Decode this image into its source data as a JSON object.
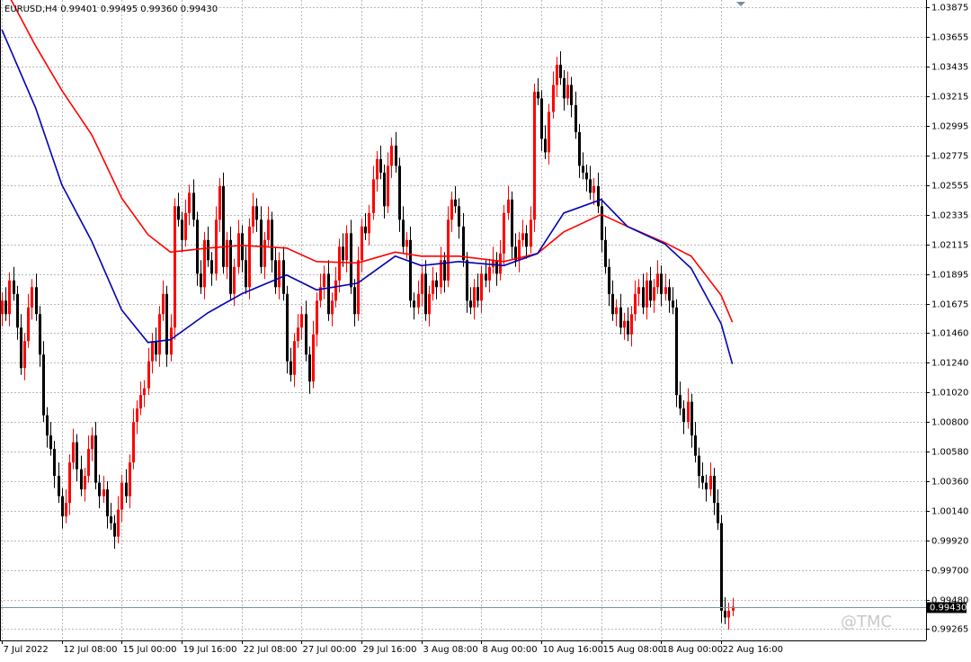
{
  "chart_data": {
    "type": "candlestick",
    "header": "EURUSD,H4  0.99401 0.99495 0.99360 0.99430",
    "watermark": "@TMC",
    "up_color": "#ff0000",
    "down_color": "#000000",
    "ylim": [
      0.9918,
      1.0393
    ],
    "yticks": [
      1.03875,
      1.03655,
      1.03435,
      1.03215,
      1.02995,
      1.02775,
      1.02555,
      1.02335,
      1.02115,
      1.01895,
      1.01675,
      {
        "value": 1.0146,
        "label": "1.01460"
      },
      {
        "value": 1.0124,
        "label": "1.01240"
      },
      {
        "value": 1.0102,
        "label": "1.01020"
      },
      {
        "value": 1.008,
        "label": "1.00800"
      },
      {
        "value": 1.0058,
        "label": "1.00580"
      },
      {
        "value": 1.0036,
        "label": "1.00360"
      },
      {
        "value": 1.0014,
        "label": "1.00140"
      },
      {
        "value": 0.9992,
        "label": "0.99920"
      },
      {
        "value": 0.997,
        "label": "0.99700"
      },
      {
        "value": 0.9948,
        "label": "0.99480"
      },
      0.99265
    ],
    "xlim": [
      -0.5,
      246.7
    ],
    "xticks": [
      {
        "value": 0,
        "label": "7 Jul 2022"
      },
      {
        "value": 16,
        "label": "12 Jul 08:00"
      },
      {
        "value": 32,
        "label": "15 Jul 00:00"
      },
      {
        "value": 48,
        "label": "19 Jul 16:00"
      },
      {
        "value": 64,
        "label": "22 Jul 08:00"
      },
      {
        "value": 80,
        "label": "27 Jul 00:00"
      },
      {
        "value": 96,
        "label": "29 Jul 16:00"
      },
      {
        "value": 112,
        "label": "3 Aug 08:00"
      },
      {
        "value": 128,
        "label": "8 Aug 00:00"
      },
      {
        "value": 144,
        "label": "10 Aug 16:00"
      },
      {
        "value": 160,
        "label": "15 Aug 08:00"
      },
      {
        "value": 176,
        "label": "18 Aug 00:00"
      },
      {
        "value": 192,
        "label": "22 Aug 16:00"
      }
    ],
    "grid": true,
    "last_price": {
      "value": 0.9943,
      "label": "0.99430"
    },
    "ohlc": [
      [
        1.016,
        1.0176,
        1.0151,
        1.017
      ],
      [
        1.017,
        1.018,
        1.0155,
        1.016
      ],
      [
        1.016,
        1.0191,
        1.0151,
        1.0185
      ],
      [
        1.0185,
        1.0195,
        1.017,
        1.0175
      ],
      [
        1.0175,
        1.0181,
        1.0141,
        1.015
      ],
      [
        1.015,
        1.016,
        1.0115,
        1.012
      ],
      [
        1.012,
        1.0146,
        1.0111,
        1.014
      ],
      [
        1.014,
        1.0175,
        1.0135,
        1.0165
      ],
      [
        1.0165,
        1.0186,
        1.0156,
        1.018
      ],
      [
        1.018,
        1.019,
        1.0155,
        1.016
      ],
      [
        1.016,
        1.0166,
        1.0121,
        1.013
      ],
      [
        1.013,
        1.014,
        1.008,
        1.0085
      ],
      [
        1.0085,
        1.0091,
        1.0061,
        1.007
      ],
      [
        1.007,
        1.008,
        1.0055,
        1.006
      ],
      [
        1.006,
        1.0066,
        1.0031,
        1.004
      ],
      [
        1.004,
        1.005,
        1.002,
        1.0025
      ],
      [
        1.0025,
        1.0031,
        1.0001,
        1.001
      ],
      [
        1.001,
        1.003,
        1.0005,
        1.002
      ],
      [
        1.002,
        1.0056,
        1.0011,
        1.005
      ],
      [
        1.005,
        1.0075,
        1.0045,
        1.0065
      ],
      [
        1.0065,
        1.0071,
        1.0036,
        1.0045
      ],
      [
        1.0045,
        1.0055,
        1.0025,
        1.003
      ],
      [
        1.003,
        1.0046,
        1.0021,
        1.004
      ],
      [
        1.004,
        1.007,
        1.0035,
        1.006
      ],
      [
        1.006,
        1.0076,
        1.0051,
        1.007
      ],
      [
        1.007,
        1.008,
        1.003,
        1.0035
      ],
      [
        1.0035,
        1.0041,
        1.0016,
        1.0025
      ],
      [
        1.0025,
        1.004,
        1.002,
        1.003
      ],
      [
        1.003,
        1.0036,
        1.0001,
        1.001
      ],
      [
        1.001,
        1.002,
        1.0,
        1.0005
      ],
      [
        1.0005,
        1.0011,
        0.9986,
        0.9995
      ],
      [
        0.9995,
        1.0025,
        0.999,
        1.0015
      ],
      [
        1.0015,
        1.0041,
        1.0006,
        1.0035
      ],
      [
        1.0035,
        1.0045,
        1.002,
        1.0025
      ],
      [
        1.0025,
        1.0056,
        1.0016,
        1.005
      ],
      [
        1.005,
        1.009,
        1.0045,
        1.008
      ],
      [
        1.008,
        1.0096,
        1.0071,
        1.009
      ],
      [
        1.009,
        1.011,
        1.0085,
        1.01
      ],
      [
        1.01,
        1.0111,
        1.0091,
        1.0105
      ],
      [
        1.0105,
        1.0135,
        1.01,
        1.0125
      ],
      [
        1.0125,
        1.0146,
        1.0116,
        1.014
      ],
      [
        1.014,
        1.015,
        1.0125,
        1.013
      ],
      [
        1.013,
        1.0166,
        1.0121,
        1.016
      ],
      [
        1.016,
        1.0185,
        1.0155,
        1.0175
      ],
      [
        1.0175,
        1.0181,
        1.0121,
        1.013
      ],
      [
        1.013,
        1.016,
        1.0125,
        1.015
      ],
      [
        1.015,
        1.0246,
        1.0141,
        1.024
      ],
      [
        1.024,
        1.025,
        1.0225,
        1.023
      ],
      [
        1.023,
        1.0236,
        1.0206,
        1.0215
      ],
      [
        1.0215,
        1.0245,
        1.021,
        1.0235
      ],
      [
        1.0235,
        1.0256,
        1.0226,
        1.025
      ],
      [
        1.025,
        1.026,
        1.0225,
        1.023
      ],
      [
        1.023,
        1.0236,
        1.0181,
        1.019
      ],
      [
        1.019,
        1.02,
        1.0175,
        1.018
      ],
      [
        1.018,
        1.0221,
        1.0171,
        1.0215
      ],
      [
        1.0215,
        1.0225,
        1.0195,
        1.02
      ],
      [
        1.02,
        1.0206,
        1.0181,
        1.019
      ],
      [
        1.019,
        1.024,
        1.0185,
        1.023
      ],
      [
        1.023,
        1.0261,
        1.0221,
        1.0255
      ],
      [
        1.0255,
        1.0265,
        1.019,
        1.0195
      ],
      [
        1.0195,
        1.0221,
        1.0186,
        1.0215
      ],
      [
        1.0215,
        1.0225,
        1.017,
        1.0175
      ],
      [
        1.0175,
        1.0201,
        1.0166,
        1.0195
      ],
      [
        1.0195,
        1.023,
        1.019,
        1.022
      ],
      [
        1.022,
        1.0226,
        1.0191,
        1.02
      ],
      [
        1.02,
        1.021,
        1.0175,
        1.018
      ],
      [
        1.018,
        1.0231,
        1.0171,
        1.0225
      ],
      [
        1.0225,
        1.025,
        1.022,
        1.024
      ],
      [
        1.024,
        1.0246,
        1.0221,
        1.023
      ],
      [
        1.023,
        1.024,
        1.019,
        1.0195
      ],
      [
        1.0195,
        1.0221,
        1.0186,
        1.0215
      ],
      [
        1.0215,
        1.024,
        1.021,
        1.023
      ],
      [
        1.023,
        1.0236,
        1.0191,
        1.02
      ],
      [
        1.02,
        1.021,
        1.0175,
        1.018
      ],
      [
        1.018,
        1.0206,
        1.0171,
        1.02
      ],
      [
        1.02,
        1.021,
        1.017,
        1.0175
      ],
      [
        1.0175,
        1.0181,
        1.0116,
        1.0125
      ],
      [
        1.0125,
        1.0135,
        1.011,
        1.0115
      ],
      [
        1.0115,
        1.0146,
        1.0106,
        1.014
      ],
      [
        1.014,
        1.016,
        1.0135,
        1.015
      ],
      [
        1.015,
        1.0166,
        1.0141,
        1.016
      ],
      [
        1.016,
        1.017,
        1.0125,
        1.013
      ],
      [
        1.013,
        1.0136,
        1.0101,
        1.011
      ],
      [
        1.011,
        1.0155,
        1.0105,
        1.0145
      ],
      [
        1.0145,
        1.0176,
        1.0136,
        1.017
      ],
      [
        1.017,
        1.019,
        1.0165,
        1.018
      ],
      [
        1.018,
        1.0196,
        1.0171,
        1.019
      ],
      [
        1.019,
        1.02,
        1.0155,
        1.016
      ],
      [
        1.016,
        1.0176,
        1.0151,
        1.017
      ],
      [
        1.017,
        1.0195,
        1.0165,
        1.0185
      ],
      [
        1.0185,
        1.0216,
        1.0176,
        1.021
      ],
      [
        1.021,
        1.022,
        1.0195,
        1.02
      ],
      [
        1.02,
        1.0226,
        1.0191,
        1.022
      ],
      [
        1.022,
        1.023,
        1.0175,
        1.018
      ],
      [
        1.018,
        1.0186,
        1.0151,
        1.016
      ],
      [
        1.016,
        1.021,
        1.0155,
        1.02
      ],
      [
        1.02,
        1.0231,
        1.0191,
        1.0225
      ],
      [
        1.0225,
        1.0235,
        1.0215,
        1.022
      ],
      [
        1.022,
        1.0241,
        1.0211,
        1.0235
      ],
      [
        1.0235,
        1.027,
        1.023,
        1.026
      ],
      [
        1.026,
        1.0281,
        1.0251,
        1.0275
      ],
      [
        1.0275,
        1.0285,
        1.026,
        1.0265
      ],
      [
        1.0265,
        1.0271,
        1.0231,
        1.024
      ],
      [
        1.024,
        1.028,
        1.0235,
        1.027
      ],
      [
        1.027,
        1.0291,
        1.0261,
        1.0285
      ],
      [
        1.0285,
        1.0295,
        1.0265,
        1.027
      ],
      [
        1.027,
        1.0276,
        1.0221,
        1.023
      ],
      [
        1.023,
        1.024,
        1.0205,
        1.021
      ],
      [
        1.021,
        1.0221,
        1.0201,
        1.0215
      ],
      [
        1.0215,
        1.0225,
        1.0165,
        1.017
      ],
      [
        1.017,
        1.0176,
        1.0156,
        1.0165
      ],
      [
        1.0165,
        1.0185,
        1.016,
        1.0175
      ],
      [
        1.0175,
        1.0196,
        1.0166,
        1.019
      ],
      [
        1.019,
        1.02,
        1.0155,
        1.016
      ],
      [
        1.016,
        1.0181,
        1.0151,
        1.0175
      ],
      [
        1.0175,
        1.0195,
        1.017,
        1.0185
      ],
      [
        1.0185,
        1.0191,
        1.0171,
        1.018
      ],
      [
        1.018,
        1.021,
        1.0175,
        1.02
      ],
      [
        1.02,
        1.0206,
        1.0176,
        1.0185
      ],
      [
        1.0185,
        1.024,
        1.018,
        1.023
      ],
      [
        1.023,
        1.0251,
        1.0221,
        1.0245
      ],
      [
        1.0245,
        1.0255,
        1.0235,
        1.024
      ],
      [
        1.024,
        1.0246,
        1.0216,
        1.0225
      ],
      [
        1.0225,
        1.0235,
        1.0195,
        1.02
      ],
      [
        1.02,
        1.0206,
        1.0161,
        1.017
      ],
      [
        1.017,
        1.018,
        1.016,
        1.0165
      ],
      [
        1.0165,
        1.0186,
        1.0156,
        1.018
      ],
      [
        1.018,
        1.019,
        1.0165,
        1.017
      ],
      [
        1.017,
        1.0196,
        1.0161,
        1.019
      ],
      [
        1.019,
        1.02,
        1.018,
        1.0185
      ],
      [
        1.0185,
        1.0201,
        1.0176,
        1.0195
      ],
      [
        1.0195,
        1.021,
        1.019,
        1.02
      ],
      [
        1.02,
        1.0206,
        1.0181,
        1.019
      ],
      [
        1.019,
        1.0215,
        1.0185,
        1.0205
      ],
      [
        1.0205,
        1.0241,
        1.0196,
        1.0235
      ],
      [
        1.0235,
        1.0255,
        1.023,
        1.0245
      ],
      [
        1.0245,
        1.0251,
        1.0201,
        1.021
      ],
      [
        1.021,
        1.022,
        1.0195,
        1.02
      ],
      [
        1.02,
        1.0221,
        1.0191,
        1.0215
      ],
      [
        1.0215,
        1.023,
        1.021,
        1.022
      ],
      [
        1.022,
        1.0226,
        1.0201,
        1.021
      ],
      [
        1.021,
        1.024,
        1.0205,
        1.023
      ],
      [
        1.023,
        1.0331,
        1.0221,
        1.0325
      ],
      [
        1.0325,
        1.0335,
        1.0315,
        1.032
      ],
      [
        1.032,
        1.0326,
        1.0281,
        1.029
      ],
      [
        1.029,
        1.03,
        1.0275,
        1.028
      ],
      [
        1.028,
        1.0316,
        1.0271,
        1.031
      ],
      [
        1.031,
        1.034,
        1.0305,
        1.033
      ],
      [
        1.033,
        1.0351,
        1.0321,
        1.0345
      ],
      [
        1.0345,
        1.0355,
        1.033,
        1.0335
      ],
      [
        1.0335,
        1.0341,
        1.0311,
        1.032
      ],
      [
        1.032,
        1.034,
        1.0315,
        1.033
      ],
      [
        1.033,
        1.0336,
        1.0306,
        1.0315
      ],
      [
        1.0315,
        1.0325,
        1.029,
        1.0295
      ],
      [
        1.0295,
        1.0301,
        1.0261,
        1.027
      ],
      [
        1.027,
        1.028,
        1.026,
        1.0265
      ],
      [
        1.0265,
        1.0271,
        1.0251,
        1.026
      ],
      [
        1.026,
        1.027,
        1.0245,
        1.025
      ],
      [
        1.025,
        1.0261,
        1.0241,
        1.0255
      ],
      [
        1.0255,
        1.0265,
        1.0235,
        1.024
      ],
      [
        1.024,
        1.0246,
        1.0206,
        1.0215
      ],
      [
        1.0215,
        1.0225,
        1.019,
        1.0195
      ],
      [
        1.0195,
        1.0201,
        1.0166,
        1.0175
      ],
      [
        1.0175,
        1.0185,
        1.0155,
        1.016
      ],
      [
        1.016,
        1.0171,
        1.0151,
        1.0165
      ],
      [
        1.0165,
        1.0175,
        1.0145,
        1.015
      ],
      [
        1.015,
        1.0161,
        1.0141,
        1.0155
      ],
      [
        1.0155,
        1.0165,
        1.014,
        1.0145
      ],
      [
        1.0145,
        1.0166,
        1.0136,
        1.016
      ],
      [
        1.016,
        1.0185,
        1.0155,
        1.0175
      ],
      [
        1.0175,
        1.0186,
        1.0166,
        1.018
      ],
      [
        1.018,
        1.019,
        1.016,
        1.0165
      ],
      [
        1.0165,
        1.0191,
        1.0156,
        1.0185
      ],
      [
        1.0185,
        1.0195,
        1.0165,
        1.017
      ],
      [
        1.017,
        1.0186,
        1.0161,
        1.018
      ],
      [
        1.018,
        1.02,
        1.0175,
        1.019
      ],
      [
        1.019,
        1.0196,
        1.0166,
        1.0175
      ],
      [
        1.0175,
        1.019,
        1.017,
        1.018
      ],
      [
        1.018,
        1.0186,
        1.0161,
        1.017
      ],
      [
        1.017,
        1.018,
        1.016,
        1.0165
      ],
      [
        1.0165,
        1.0171,
        1.0091,
        1.01
      ],
      [
        1.01,
        1.011,
        1.0085,
        1.009
      ],
      [
        1.009,
        1.0096,
        1.0071,
        1.008
      ],
      [
        1.008,
        1.0105,
        1.0075,
        1.0095
      ],
      [
        1.0095,
        1.0101,
        1.0061,
        1.007
      ],
      [
        1.007,
        1.008,
        1.005,
        1.0055
      ],
      [
        1.0055,
        1.0061,
        1.0031,
        1.004
      ],
      [
        1.004,
        1.005,
        1.003,
        1.0035
      ],
      [
        1.0035,
        1.0041,
        1.0021,
        1.003
      ],
      [
        1.003,
        1.005,
        1.0025,
        1.004
      ],
      [
        1.004,
        1.0046,
        1.0011,
        1.002
      ],
      [
        1.002,
        1.003,
        1.0,
        1.0005
      ],
      [
        1.0005,
        1.0011,
        0.9931,
        0.994
      ],
      [
        0.994,
        0.995,
        0.993,
        0.9935
      ],
      [
        0.9935,
        0.9946,
        0.9926,
        0.994
      ],
      [
        0.99401,
        0.99495,
        0.9936,
        0.9943
      ]
    ],
    "series": [
      {
        "color": "#ff0000",
        "x": [
          0,
          9,
          16,
          24,
          32,
          39,
          45,
          55,
          64,
          76,
          84,
          95,
          105,
          112,
          122,
          134,
          143,
          150,
          160,
          167,
          177,
          184,
          192,
          195
        ],
        "values": [
          1.0406,
          1.0359,
          1.0326,
          1.0293,
          1.0246,
          1.0219,
          1.0206,
          1.0209,
          1.0211,
          1.0209,
          1.0199,
          1.0198,
          1.0206,
          1.0203,
          1.0203,
          1.0199,
          1.0205,
          1.0221,
          1.0234,
          1.0225,
          1.0213,
          1.0203,
          1.0174,
          1.0154
        ]
      },
      {
        "color": "#0000b4",
        "x": [
          0,
          9,
          16,
          24,
          32,
          39,
          45,
          55,
          64,
          76,
          84,
          95,
          105,
          112,
          122,
          134,
          143,
          150,
          160,
          167,
          177,
          184,
          192,
          195
        ],
        "values": [
          1.0371,
          1.0313,
          1.0256,
          1.0214,
          1.0163,
          1.0139,
          1.0141,
          1.0161,
          1.0175,
          1.0189,
          1.0178,
          1.0183,
          1.0203,
          1.0196,
          1.0199,
          1.0196,
          1.0205,
          1.0235,
          1.0245,
          1.0225,
          1.0212,
          1.0194,
          1.0153,
          1.0123
        ]
      }
    ]
  }
}
